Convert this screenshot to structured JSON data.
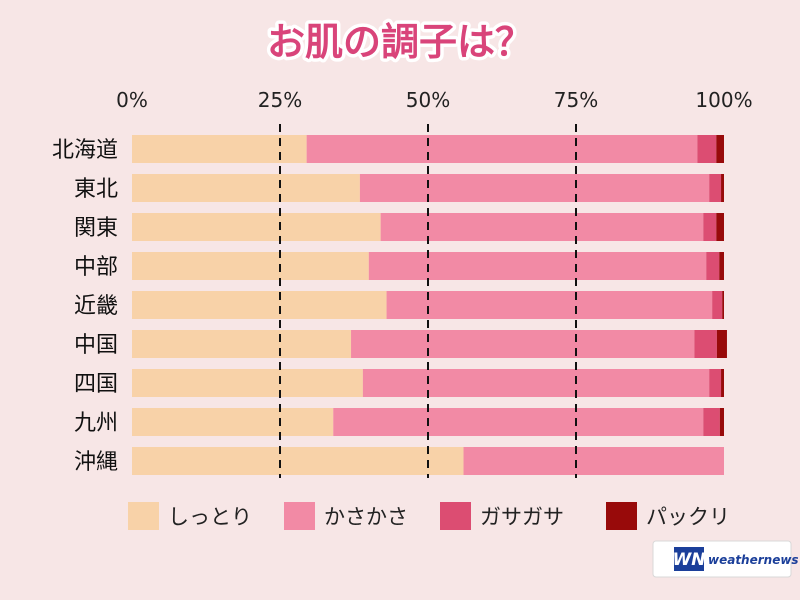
{
  "chart_data": {
    "type": "bar",
    "orientation": "horizontal",
    "stacked": true,
    "title": "お肌の調子は？",
    "categories": [
      "北海道",
      "東北",
      "関東",
      "中部",
      "近畿",
      "中国",
      "四国",
      "九州",
      "沖縄"
    ],
    "series": [
      {
        "name": "しっとり",
        "color": "#f8d2a8",
        "values": [
          29.5,
          38.5,
          42,
          40,
          43,
          37,
          39,
          34,
          56
        ]
      },
      {
        "name": "かさかさ",
        "color": "#f28aa5",
        "values": [
          66,
          59,
          54.5,
          57,
          55,
          58,
          58.5,
          62.5,
          44
        ]
      },
      {
        "name": "ガサガサ",
        "color": "#dc4d72",
        "values": [
          3.2,
          2,
          2.2,
          2.2,
          1.7,
          3.8,
          2,
          2.8,
          0
        ]
      },
      {
        "name": "パックリ",
        "color": "#980a0a",
        "values": [
          1.3,
          0.5,
          1.3,
          0.8,
          0.3,
          1.7,
          0.5,
          0.7,
          0
        ]
      }
    ],
    "x_ticks": [
      "0%",
      "25%",
      "50%",
      "75%",
      "100%"
    ],
    "xlim": [
      0,
      100
    ],
    "grid": "dashed vertical at 25%, 50%, 75%",
    "legend_position": "bottom"
  },
  "logo": {
    "text": "weathernews",
    "mark": "WN",
    "color": "#1b3f9a"
  }
}
